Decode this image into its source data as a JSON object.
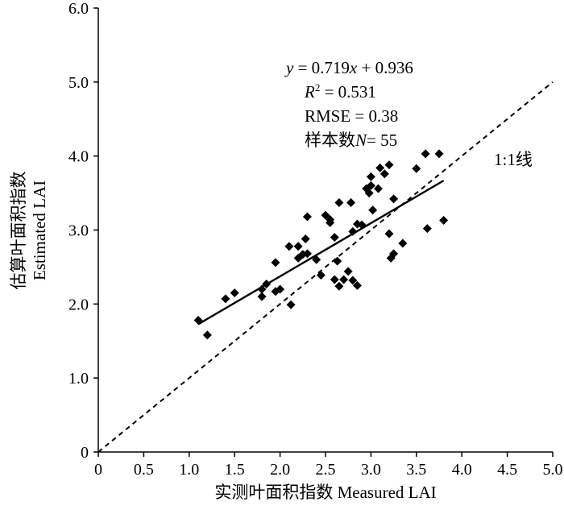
{
  "chart_data": {
    "type": "scatter",
    "xlabel": "实测叶面积指数 Measured LAI",
    "ylabel_line1": "估算叶面积指数",
    "ylabel_line2": "Estimated LAI",
    "xlim": [
      0,
      5.0
    ],
    "ylim": [
      0,
      6.0
    ],
    "x_ticks": [
      "0",
      "0.5",
      "1.0",
      "1.5",
      "2.0",
      "2.5",
      "3.0",
      "3.5",
      "4.0",
      "4.5",
      "5.0"
    ],
    "y_ticks": [
      "0",
      "1.0",
      "2.0",
      "3.0",
      "4.0",
      "5.0",
      "6.0"
    ],
    "grid": false,
    "annotations": {
      "equation_y": "y",
      "equation_rest": " = 0.719",
      "equation_x": "x",
      "equation_tail": " + 0.936",
      "r2_label": "R",
      "r2_sup": "2",
      "r2_value": " = 0.531",
      "rmse": "RMSE = 0.38",
      "n_prefix": "样本数",
      "n_symbol": "N",
      "n_value": "= 55",
      "identity_label": "1:1线"
    },
    "fit_line": {
      "slope": 0.719,
      "intercept": 0.936,
      "x_range": [
        1.1,
        3.8
      ]
    },
    "identity_line": {
      "x_range": [
        0,
        5.0
      ]
    },
    "points": [
      {
        "x": 1.1,
        "y": 1.78
      },
      {
        "x": 1.2,
        "y": 1.58
      },
      {
        "x": 1.4,
        "y": 2.07
      },
      {
        "x": 1.5,
        "y": 2.15
      },
      {
        "x": 1.8,
        "y": 2.2
      },
      {
        "x": 1.8,
        "y": 2.1
      },
      {
        "x": 1.85,
        "y": 2.27
      },
      {
        "x": 1.95,
        "y": 2.17
      },
      {
        "x": 1.95,
        "y": 2.56
      },
      {
        "x": 2.0,
        "y": 2.2
      },
      {
        "x": 2.1,
        "y": 2.78
      },
      {
        "x": 2.12,
        "y": 1.99
      },
      {
        "x": 2.2,
        "y": 2.62
      },
      {
        "x": 2.2,
        "y": 2.78
      },
      {
        "x": 2.25,
        "y": 2.67
      },
      {
        "x": 2.28,
        "y": 2.88
      },
      {
        "x": 2.3,
        "y": 3.18
      },
      {
        "x": 2.3,
        "y": 2.68
      },
      {
        "x": 2.4,
        "y": 2.6
      },
      {
        "x": 2.45,
        "y": 2.39
      },
      {
        "x": 2.5,
        "y": 3.2
      },
      {
        "x": 2.55,
        "y": 3.1
      },
      {
        "x": 2.6,
        "y": 2.9
      },
      {
        "x": 2.6,
        "y": 2.33
      },
      {
        "x": 2.63,
        "y": 2.58
      },
      {
        "x": 2.65,
        "y": 2.24
      },
      {
        "x": 2.65,
        "y": 3.37
      },
      {
        "x": 2.7,
        "y": 2.33
      },
      {
        "x": 2.75,
        "y": 2.44
      },
      {
        "x": 2.78,
        "y": 3.37
      },
      {
        "x": 2.8,
        "y": 2.98
      },
      {
        "x": 2.8,
        "y": 2.32
      },
      {
        "x": 2.85,
        "y": 3.08
      },
      {
        "x": 2.85,
        "y": 2.25
      },
      {
        "x": 2.9,
        "y": 3.07
      },
      {
        "x": 2.95,
        "y": 3.56
      },
      {
        "x": 2.98,
        "y": 3.5
      },
      {
        "x": 3.0,
        "y": 3.6
      },
      {
        "x": 3.0,
        "y": 3.72
      },
      {
        "x": 3.02,
        "y": 3.27
      },
      {
        "x": 3.08,
        "y": 3.56
      },
      {
        "x": 3.1,
        "y": 3.84
      },
      {
        "x": 3.15,
        "y": 3.76
      },
      {
        "x": 3.2,
        "y": 3.88
      },
      {
        "x": 3.2,
        "y": 2.95
      },
      {
        "x": 3.22,
        "y": 2.62
      },
      {
        "x": 3.25,
        "y": 2.68
      },
      {
        "x": 3.35,
        "y": 2.82
      },
      {
        "x": 3.5,
        "y": 3.83
      },
      {
        "x": 3.6,
        "y": 4.03
      },
      {
        "x": 3.62,
        "y": 3.02
      },
      {
        "x": 3.75,
        "y": 4.03
      },
      {
        "x": 3.8,
        "y": 3.13
      },
      {
        "x": 3.25,
        "y": 3.42
      },
      {
        "x": 2.55,
        "y": 3.14
      }
    ]
  }
}
